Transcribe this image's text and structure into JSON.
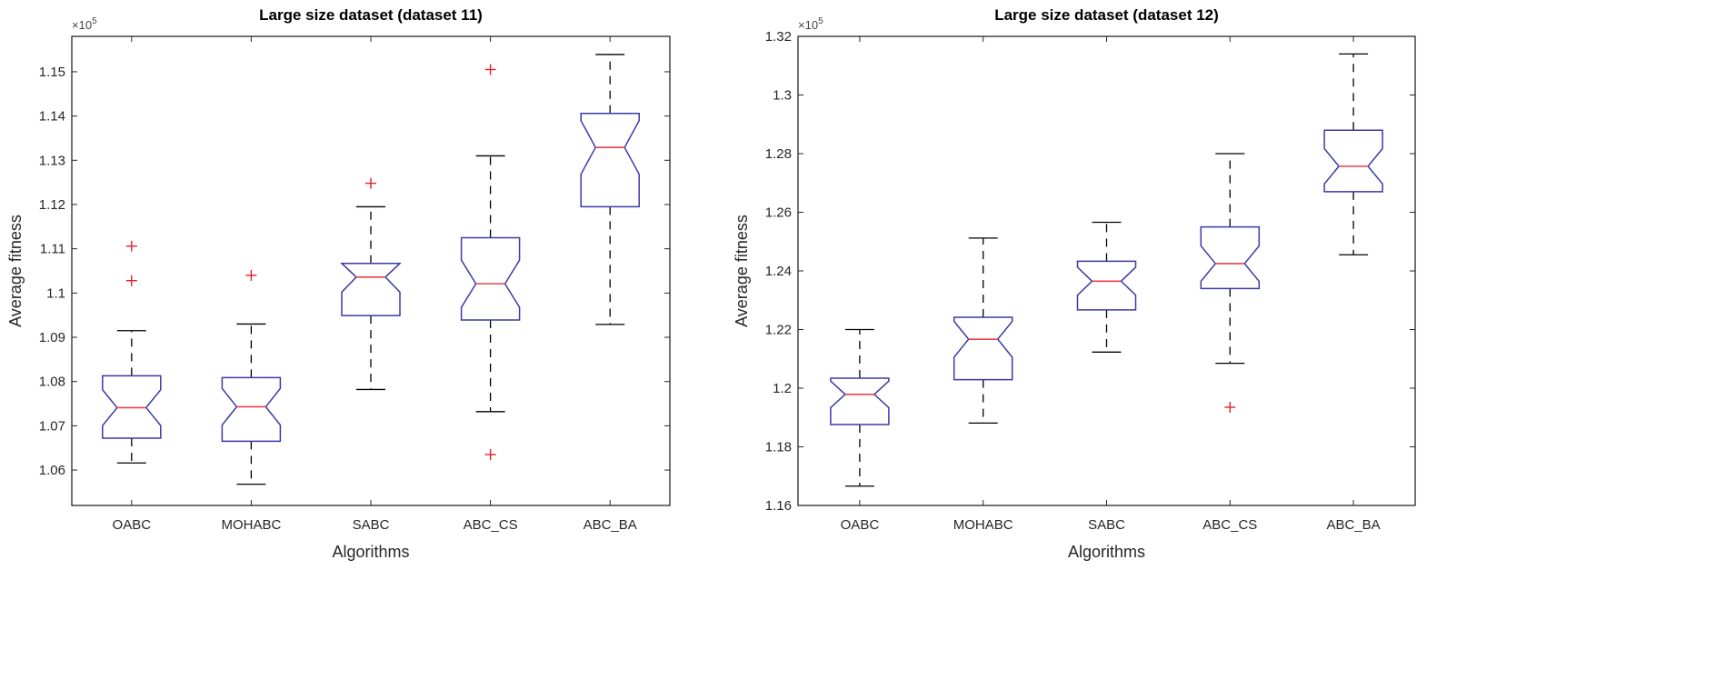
{
  "colors": {
    "box": "#3a3aa8",
    "median": "#e8404a",
    "whisker": "#000000",
    "outlier": "#e0202a",
    "axis": "#262626"
  },
  "chart_data": [
    {
      "type": "boxplot",
      "notched": true,
      "title": "Large size dataset (dataset 11)",
      "xlabel": "Algorithms",
      "ylabel": "Average fitness",
      "y_multiplier": "×10",
      "y_multiplier_exp": "5",
      "ylim": [
        1.052,
        1.158
      ],
      "yticks": [
        1.06,
        1.07,
        1.08,
        1.09,
        1.1,
        1.11,
        1.12,
        1.13,
        1.14,
        1.15
      ],
      "ytick_labels": [
        "1.06",
        "1.07",
        "1.08",
        "1.09",
        "1.1",
        "1.11",
        "1.12",
        "1.13",
        "1.14",
        "1.15"
      ],
      "categories": [
        "OABC",
        "MOHABC",
        "SABC",
        "ABC_CS",
        "ABC_BA"
      ],
      "boxes": [
        {
          "whisker_low": 1.0616,
          "q1": 1.0672,
          "median": 1.0741,
          "q3": 1.0813,
          "whisker_high": 1.0915,
          "outliers": [
            1.1106,
            1.1028
          ]
        },
        {
          "whisker_low": 1.0568,
          "q1": 1.0665,
          "median": 1.0743,
          "q3": 1.0809,
          "whisker_high": 1.093,
          "outliers": [
            1.104
          ]
        },
        {
          "whisker_low": 1.0782,
          "q1": 1.0949,
          "median": 1.1036,
          "q3": 1.1067,
          "whisker_high": 1.1195,
          "outliers": [
            1.1248
          ]
        },
        {
          "whisker_low": 1.0732,
          "q1": 1.0939,
          "median": 1.1021,
          "q3": 1.1125,
          "whisker_high": 1.131,
          "outliers": [
            1.1505,
            1.0635
          ]
        },
        {
          "whisker_low": 1.0929,
          "q1": 1.1195,
          "median": 1.1329,
          "q3": 1.1406,
          "whisker_high": 1.1539,
          "outliers": []
        }
      ]
    },
    {
      "type": "boxplot",
      "notched": true,
      "title": "Large size dataset (dataset 12)",
      "xlabel": "Algorithms",
      "ylabel": "Average fitness",
      "y_multiplier": "×10",
      "y_multiplier_exp": "5",
      "ylim": [
        1.16,
        1.32
      ],
      "yticks": [
        1.16,
        1.18,
        1.2,
        1.22,
        1.24,
        1.26,
        1.28,
        1.3,
        1.32
      ],
      "ytick_labels": [
        "1.16",
        "1.18",
        "1.2",
        "1.22",
        "1.24",
        "1.26",
        "1.28",
        "1.3",
        "1.32"
      ],
      "categories": [
        "OABC",
        "MOHABC",
        "SABC",
        "ABC_CS",
        "ABC_BA"
      ],
      "boxes": [
        {
          "whisker_low": 1.1666,
          "q1": 1.1876,
          "median": 1.1979,
          "q3": 1.2034,
          "whisker_high": 1.22,
          "outliers": []
        },
        {
          "whisker_low": 1.1881,
          "q1": 1.2029,
          "median": 1.2167,
          "q3": 1.2242,
          "whisker_high": 1.2512,
          "outliers": []
        },
        {
          "whisker_low": 1.2123,
          "q1": 1.2267,
          "median": 1.2365,
          "q3": 1.2433,
          "whisker_high": 1.2566,
          "outliers": []
        },
        {
          "whisker_low": 1.2085,
          "q1": 1.234,
          "median": 1.2425,
          "q3": 1.255,
          "whisker_high": 1.28,
          "outliers": [
            1.1935
          ]
        },
        {
          "whisker_low": 1.2455,
          "q1": 1.267,
          "median": 1.2757,
          "q3": 1.288,
          "whisker_high": 1.314,
          "outliers": []
        }
      ]
    }
  ]
}
